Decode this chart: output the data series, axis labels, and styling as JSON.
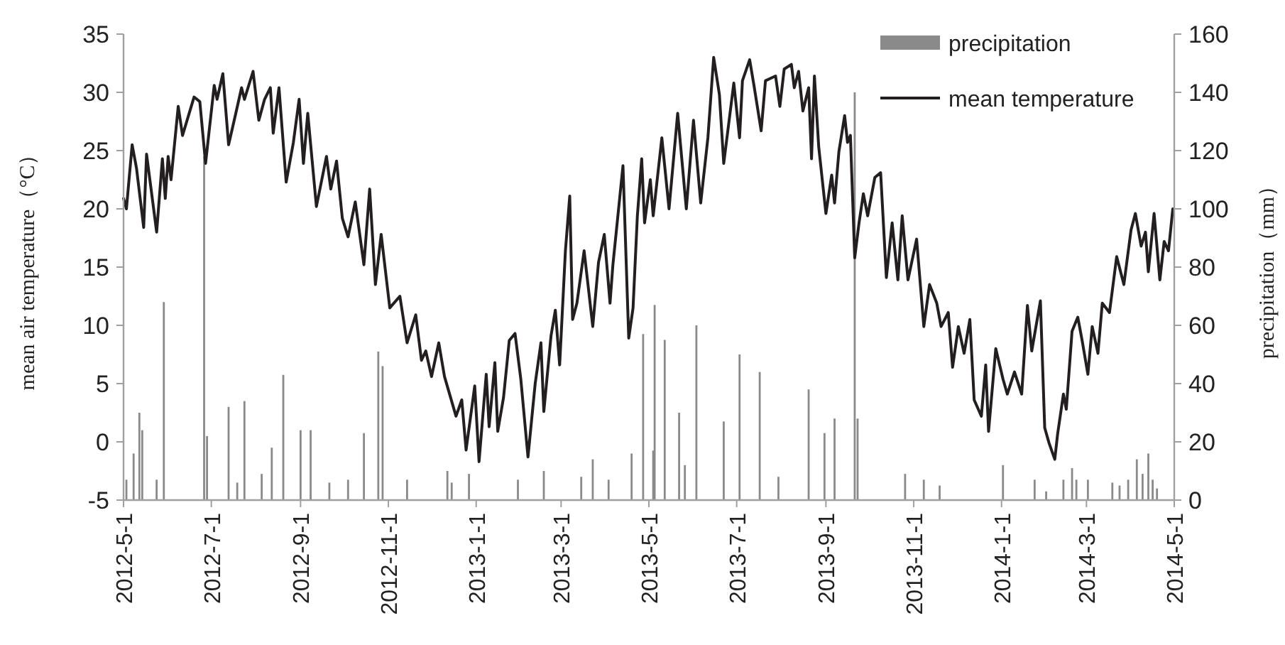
{
  "chart_data": {
    "type": "line",
    "ylabel": "mean air temperature（°C）",
    "y2label": "precipitation（mm）",
    "legend": "top right",
    "xlim": [
      "2012-05-01",
      "2014-05-01"
    ],
    "xticks": [
      {
        "value": "2012-05-01",
        "label": "2012-5-1"
      },
      {
        "value": "2012-07-01",
        "label": "2012-7-1"
      },
      {
        "value": "2012-09-01",
        "label": "2012-9-1"
      },
      {
        "value": "2012-11-01",
        "label": "2012-11-1"
      },
      {
        "value": "2013-01-01",
        "label": "2013-1-1"
      },
      {
        "value": "2013-03-01",
        "label": "2013-3-1"
      },
      {
        "value": "2013-05-01",
        "label": "2013-5-1"
      },
      {
        "value": "2013-07-01",
        "label": "2013-7-1"
      },
      {
        "value": "2013-09-01",
        "label": "2013-9-1"
      },
      {
        "value": "2013-11-01",
        "label": "2013-11-1"
      },
      {
        "value": "2014-01-01",
        "label": "2014-1-1"
      },
      {
        "value": "2014-03-01",
        "label": "2014-3-1"
      },
      {
        "value": "2014-05-01",
        "label": "2014-5-1"
      }
    ],
    "ylim": [
      -5,
      35
    ],
    "yticks": [
      -5,
      0,
      5,
      10,
      15,
      20,
      25,
      30,
      35
    ],
    "y2lim": [
      0,
      160
    ],
    "y2ticks": [
      0,
      20,
      40,
      60,
      80,
      100,
      120,
      140,
      160
    ],
    "series": [
      {
        "name": "precipitation",
        "type": "bar",
        "axis": "y2",
        "color": "#8a8a8a",
        "x": [
          "2012-05-03",
          "2012-05-08",
          "2012-05-12",
          "2012-05-14",
          "2012-05-24",
          "2012-05-29",
          "2012-06-26",
          "2012-06-28",
          "2012-07-13",
          "2012-07-19",
          "2012-07-24",
          "2012-08-05",
          "2012-08-12",
          "2012-08-20",
          "2012-09-01",
          "2012-09-08",
          "2012-09-21",
          "2012-10-04",
          "2012-10-15",
          "2012-10-25",
          "2012-10-28",
          "2012-11-14",
          "2012-12-12",
          "2012-12-15",
          "2012-12-27",
          "2013-01-30",
          "2013-02-17",
          "2013-03-15",
          "2013-03-23",
          "2013-04-03",
          "2013-04-19",
          "2013-04-27",
          "2013-05-04",
          "2013-05-05",
          "2013-05-12",
          "2013-05-22",
          "2013-05-26",
          "2013-06-03",
          "2013-06-22",
          "2013-07-03",
          "2013-07-17",
          "2013-07-30",
          "2013-08-20",
          "2013-08-31",
          "2013-09-07",
          "2013-09-21",
          "2013-09-23",
          "2013-10-26",
          "2013-11-08",
          "2013-11-19",
          "2014-01-02",
          "2014-01-24",
          "2014-02-01",
          "2014-02-13",
          "2014-02-19",
          "2014-02-22",
          "2014-03-02",
          "2014-03-19",
          "2014-03-24",
          "2014-03-30",
          "2014-04-05",
          "2014-04-09",
          "2014-04-13",
          "2014-04-16",
          "2014-04-19"
        ],
        "values": [
          7,
          16,
          30,
          24,
          7,
          68,
          118,
          22,
          32,
          6,
          34,
          9,
          18,
          43,
          24,
          24,
          6,
          7,
          23,
          51,
          46,
          7,
          10,
          6,
          9,
          7,
          10,
          8,
          14,
          7,
          16,
          57,
          17,
          67,
          55,
          30,
          12,
          60,
          27,
          50,
          44,
          8,
          38,
          23,
          28,
          140,
          28,
          9,
          7,
          5,
          12,
          7,
          3,
          7,
          11,
          7,
          7,
          6,
          5,
          7,
          14,
          9,
          16,
          7,
          4
        ]
      },
      {
        "name": "mean temperature",
        "color": "#231f20",
        "x": [
          "2012-05-01",
          "2012-05-03",
          "2012-05-07",
          "2012-05-10",
          "2012-05-15",
          "2012-05-17",
          "2012-05-24",
          "2012-05-28",
          "2012-05-30",
          "2012-06-01",
          "2012-06-03",
          "2012-06-08",
          "2012-06-11",
          "2012-06-19",
          "2012-06-23",
          "2012-06-27",
          "2012-07-03",
          "2012-07-05",
          "2012-07-09",
          "2012-07-13",
          "2012-07-18",
          "2012-07-22",
          "2012-07-24",
          "2012-07-30",
          "2012-08-03",
          "2012-08-07",
          "2012-08-11",
          "2012-08-13",
          "2012-08-17",
          "2012-08-22",
          "2012-08-27",
          "2012-08-31",
          "2012-09-03",
          "2012-09-06",
          "2012-09-12",
          "2012-09-19",
          "2012-09-22",
          "2012-09-26",
          "2012-09-30",
          "2012-10-04",
          "2012-10-09",
          "2012-10-15",
          "2012-10-19",
          "2012-10-23",
          "2012-10-27",
          "2012-11-02",
          "2012-11-09",
          "2012-11-14",
          "2012-11-20",
          "2012-11-24",
          "2012-11-27",
          "2012-12-01",
          "2012-12-06",
          "2012-12-10",
          "2012-12-18",
          "2012-12-22",
          "2012-12-25",
          "2012-12-31",
          "2013-01-03",
          "2013-01-08",
          "2013-01-10",
          "2013-01-14",
          "2013-01-16",
          "2013-01-20",
          "2013-01-24",
          "2013-01-28",
          "2013-02-01",
          "2013-02-06",
          "2013-02-11",
          "2013-02-15",
          "2013-02-17",
          "2013-02-22",
          "2013-02-25",
          "2013-02-28",
          "2013-03-04",
          "2013-03-07",
          "2013-03-09",
          "2013-03-12",
          "2013-03-17",
          "2013-03-23",
          "2013-03-27",
          "2013-03-31",
          "2013-04-04",
          "2013-04-06",
          "2013-04-13",
          "2013-04-17",
          "2013-04-20",
          "2013-04-23",
          "2013-04-26",
          "2013-04-28",
          "2013-05-02",
          "2013-05-04",
          "2013-05-10",
          "2013-05-15",
          "2013-05-21",
          "2013-05-27",
          "2013-06-01",
          "2013-06-06",
          "2013-06-11",
          "2013-06-15",
          "2013-06-19",
          "2013-06-22",
          "2013-06-29",
          "2013-07-03",
          "2013-07-05",
          "2013-07-10",
          "2013-07-13",
          "2013-07-18",
          "2013-07-21",
          "2013-07-28",
          "2013-07-31",
          "2013-08-03",
          "2013-08-08",
          "2013-08-10",
          "2013-08-13",
          "2013-08-16",
          "2013-08-20",
          "2013-08-22",
          "2013-08-24",
          "2013-08-27",
          "2013-09-01",
          "2013-09-05",
          "2013-09-07",
          "2013-09-10",
          "2013-09-14",
          "2013-09-16",
          "2013-09-18",
          "2013-09-21",
          "2013-09-24",
          "2013-09-27",
          "2013-09-30",
          "2013-10-05",
          "2013-10-09",
          "2013-10-13",
          "2013-10-17",
          "2013-10-21",
          "2013-10-24",
          "2013-10-28",
          "2013-11-03",
          "2013-11-08",
          "2013-11-12",
          "2013-11-17",
          "2013-11-20",
          "2013-11-25",
          "2013-11-28",
          "2013-12-02",
          "2013-12-06",
          "2013-12-10",
          "2013-12-13",
          "2013-12-18",
          "2013-12-21",
          "2013-12-23",
          "2013-12-28",
          "2014-01-02",
          "2014-01-05",
          "2014-01-10",
          "2014-01-15",
          "2014-01-19",
          "2014-01-22",
          "2014-01-28",
          "2014-01-31",
          "2014-02-03",
          "2014-02-07",
          "2014-02-09",
          "2014-02-13",
          "2014-02-15",
          "2014-02-19",
          "2014-02-23",
          "2014-02-26",
          "2014-03-02",
          "2014-03-05",
          "2014-03-09",
          "2014-03-12",
          "2014-03-17",
          "2014-03-22",
          "2014-03-27",
          "2014-04-01",
          "2014-04-04",
          "2014-04-08",
          "2014-04-11",
          "2014-04-13",
          "2014-04-17",
          "2014-04-21",
          "2014-04-24",
          "2014-04-27",
          "2014-04-30"
        ],
        "values": [
          20.9,
          20.0,
          25.5,
          23.5,
          18.4,
          24.7,
          18.0,
          24.3,
          20.9,
          24.5,
          22.5,
          28.8,
          26.3,
          29.6,
          29.2,
          23.9,
          30.6,
          29.4,
          31.6,
          25.5,
          28.2,
          30.4,
          29.4,
          31.8,
          27.6,
          29.4,
          30.4,
          26.5,
          30.4,
          22.3,
          25.7,
          29.4,
          23.9,
          28.2,
          20.2,
          24.5,
          21.7,
          24.1,
          19.2,
          17.6,
          20.6,
          15.2,
          21.7,
          13.5,
          17.8,
          11.5,
          12.5,
          8.5,
          10.9,
          7.0,
          7.8,
          5.6,
          8.5,
          5.6,
          2.2,
          3.6,
          -0.7,
          4.8,
          -1.7,
          5.8,
          1.3,
          6.8,
          0.9,
          3.8,
          8.7,
          9.3,
          5.4,
          -1.3,
          5.0,
          8.5,
          2.6,
          9.1,
          11.3,
          6.6,
          16.4,
          21.1,
          10.5,
          11.9,
          16.4,
          9.9,
          15.4,
          17.8,
          11.9,
          15.2,
          23.7,
          8.9,
          11.5,
          19.4,
          24.3,
          18.8,
          22.5,
          19.4,
          26.1,
          20.0,
          28.2,
          20.0,
          27.6,
          20.5,
          26.1,
          33.0,
          29.8,
          23.9,
          30.8,
          26.1,
          31.0,
          32.8,
          30.6,
          26.7,
          31.0,
          31.4,
          28.8,
          32.0,
          32.4,
          30.4,
          31.8,
          28.4,
          30.4,
          24.3,
          31.4,
          25.3,
          19.6,
          22.9,
          20.5,
          24.9,
          28.0,
          25.7,
          26.3,
          15.8,
          18.8,
          21.3,
          19.4,
          22.7,
          23.1,
          14.1,
          18.8,
          13.9,
          19.4,
          13.9,
          17.4,
          9.9,
          13.5,
          11.9,
          9.9,
          11.1,
          6.4,
          9.9,
          7.6,
          10.5,
          3.6,
          2.2,
          6.6,
          0.9,
          8.0,
          5.4,
          4.1,
          6.0,
          4.1,
          11.7,
          7.8,
          12.1,
          1.2,
          -0.1,
          -1.5,
          0.7,
          4.1,
          2.8,
          9.5,
          10.7,
          8.7,
          5.8,
          9.9,
          7.6,
          11.9,
          11.1,
          15.9,
          13.5,
          18.2,
          19.6,
          16.8,
          18.0,
          14.6,
          19.6,
          13.9,
          17.2,
          16.4,
          20.0
        ]
      }
    ]
  }
}
